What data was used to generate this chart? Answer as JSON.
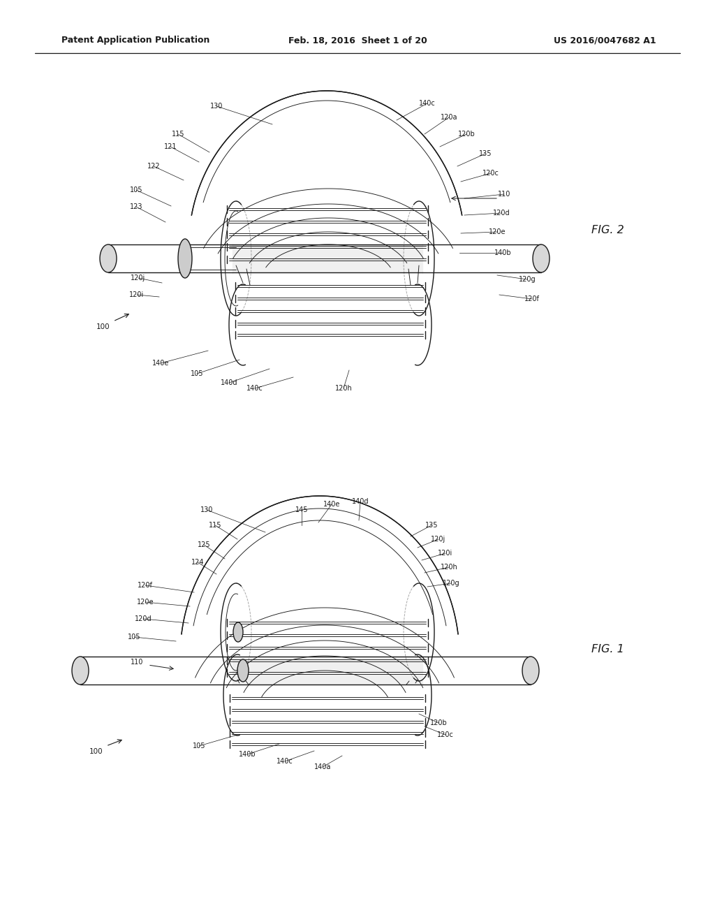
{
  "header_left": "Patent Application Publication",
  "header_mid": "Feb. 18, 2016  Sheet 1 of 20",
  "header_right": "US 2016/0047682 A1",
  "fig1_label": "FIG. 1",
  "fig2_label": "FIG. 2",
  "bg_color": "#ffffff",
  "lc": "#1a1a1a",
  "lw_thin": 0.65,
  "lw_med": 1.0,
  "lw_thick": 1.5,
  "header_fs": 9.0,
  "label_fs": 7.0,
  "fig_label_fs": 11.5
}
